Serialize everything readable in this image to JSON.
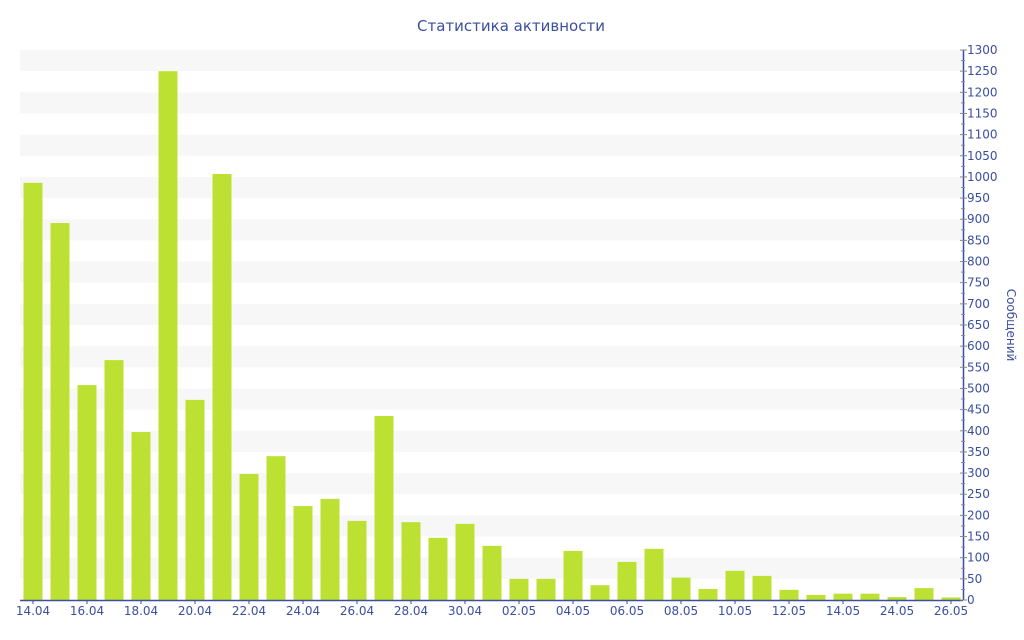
{
  "chart_data": {
    "type": "bar",
    "title": "Статистика активности",
    "xlabel": "",
    "ylabel": "Сообщений",
    "ylim": [
      0,
      1300
    ],
    "y_tick_step": 50,
    "y_axis_side": "right",
    "grid": "alternating horizontal bands every 50",
    "categories": [
      "14.04",
      "",
      "16.04",
      "",
      "18.04",
      "",
      "20.04",
      "",
      "22.04",
      "",
      "24.04",
      "",
      "26.04",
      "",
      "28.04",
      "",
      "30.04",
      "",
      "02.05",
      "",
      "04.05",
      "",
      "06.05",
      "",
      "08.05",
      "",
      "10.05",
      "",
      "12.05",
      "",
      "14.05",
      "",
      "24.05",
      "",
      "26.05"
    ],
    "values": [
      986,
      891,
      508,
      567,
      397,
      1250,
      473,
      1007,
      298,
      340,
      222,
      239,
      187,
      435,
      184,
      147,
      180,
      128,
      50,
      50,
      116,
      35,
      90,
      121,
      53,
      26,
      69,
      57,
      24,
      12,
      15,
      15,
      7,
      28,
      6
    ],
    "colors": {
      "bar": "#bde132",
      "text": "#3a4fa0",
      "axis": "#3a4fa0",
      "band": "#f7f7f7"
    }
  }
}
